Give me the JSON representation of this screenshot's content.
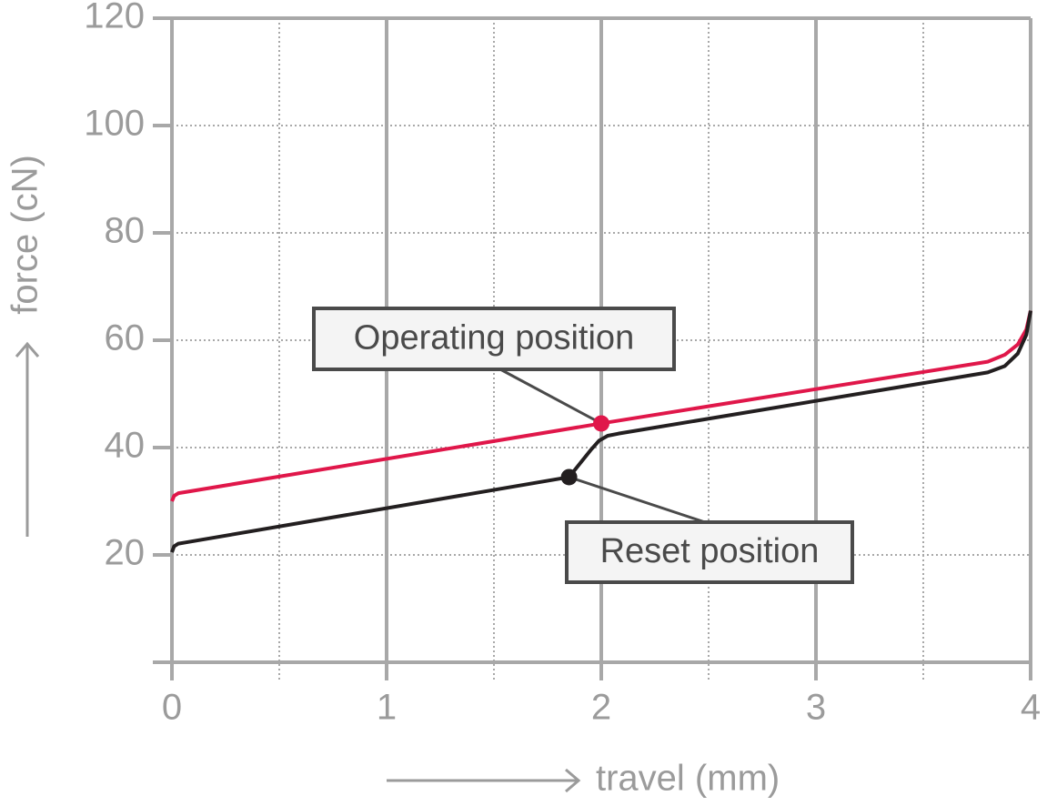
{
  "chart_data": {
    "type": "line",
    "x_label": "travel (mm)",
    "y_label": "force (cN)",
    "xlim": [
      0,
      4
    ],
    "xticks": [
      0,
      1,
      2,
      3,
      4
    ],
    "ylim": [
      0,
      120
    ],
    "yticks": [
      20,
      40,
      60,
      80,
      100,
      120
    ],
    "grid": true,
    "series": [
      {
        "color": "#e0174a",
        "x": [
          0,
          0.01,
          0.03,
          0.06,
          2,
          3.8,
          3.88,
          3.94,
          3.98,
          4
        ],
        "values": [
          30,
          31,
          31.5,
          31.7,
          44.5,
          56,
          57.3,
          59.2,
          62,
          65.5
        ]
      },
      {
        "color": "#231f20",
        "x": [
          0,
          0.01,
          0.03,
          0.06,
          1.85,
          1.95,
          1.99,
          2.03,
          2.08,
          3.8,
          3.88,
          3.94,
          3.98,
          4
        ],
        "values": [
          20.5,
          21.6,
          22.1,
          22.3,
          34.5,
          39.5,
          41.3,
          42.2,
          42.6,
          54,
          55.2,
          57.5,
          61,
          65.5
        ]
      }
    ],
    "annotations": [
      {
        "text": "Operating position",
        "x": 2,
        "y": 44.5,
        "color": "#e0174a"
      },
      {
        "text": "Reset position",
        "x": 1.85,
        "y": 34.5,
        "color": "#231f20"
      }
    ]
  }
}
